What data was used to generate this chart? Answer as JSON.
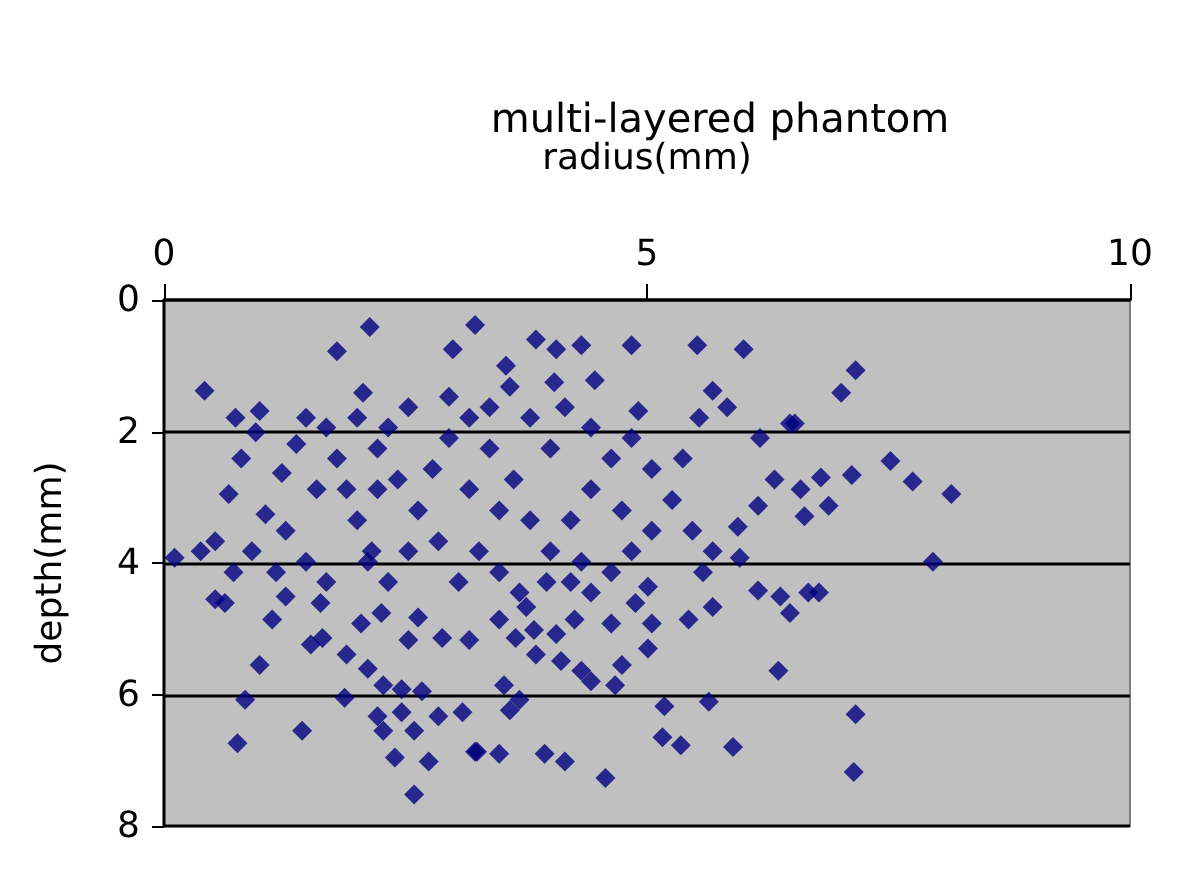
{
  "chart_data": {
    "type": "scatter",
    "title": "multi-layered phantom",
    "xlabel": "radius(mm)",
    "ylabel": "depth(mm)",
    "xlim": [
      0,
      10
    ],
    "xticks": [
      0,
      5,
      10
    ],
    "ylim": [
      8,
      0
    ],
    "yticks": [
      0,
      2,
      4,
      6,
      8
    ],
    "grid": "y",
    "marker": "diamond",
    "series": [
      {
        "color": "#000080",
        "x": [
          2.13,
          0.42,
          1.79,
          2.99,
          3.22,
          2.06,
          0.99,
          3.85,
          4.06,
          4.32,
          4.84,
          5.52,
          6.0,
          3.54,
          4.04,
          4.46,
          5.68,
          5.83,
          4.91,
          6.48,
          6.17,
          5.54,
          7.16,
          7.01,
          6.53,
          7.52,
          7.75,
          8.15,
          7.12,
          6.8,
          6.59,
          6.88,
          6.63,
          7.96,
          6.78,
          7.16,
          7.14,
          5.58,
          6.67,
          6.15,
          6.38,
          6.48,
          5.68,
          5.43,
          5.96,
          6.36,
          5.64,
          5.18,
          5.16,
          5.35,
          5.89,
          4.57,
          4.15,
          3.94,
          3.47,
          3.24,
          3.52,
          3.68,
          3.58,
          4.67,
          4.42,
          4.32,
          4.74,
          4.11,
          5.01,
          5.05,
          3.85,
          3.83,
          4.06,
          4.25,
          3.75,
          3.47,
          3.64,
          4.63,
          4.88,
          5.01,
          4.21,
          3.96,
          0.63,
          0.53,
          1.12,
          0.99,
          0.84,
          0.76,
          1.43,
          1.87,
          1.89,
          1.52,
          1.64,
          1.26,
          1.62,
          2.04,
          2.11,
          2.27,
          2.46,
          2.67,
          2.21,
          2.46,
          2.27,
          2.59,
          2.84,
          3.09,
          3.22,
          2.39,
          2.74,
          2.59,
          2.53,
          2.88,
          2.63,
          2.25,
          3.16,
          0.74,
          0.95,
          0.8,
          0.67,
          0.53,
          0.38,
          0.72,
          0.91,
          1.05,
          1.22,
          1.37,
          1.47,
          1.68,
          1.79,
          1.89,
          2.0,
          2.15,
          2.32,
          2.53,
          2.63,
          2.78,
          2.95,
          3.16,
          3.37,
          3.62,
          3.79,
          4.0,
          4.21,
          4.42,
          4.63,
          4.84,
          5.05,
          5.26,
          5.47,
          5.68,
          5.94,
          6.15,
          6.32,
          5.37,
          4.74,
          4.32,
          3.47,
          3.26,
          3.05,
          2.84,
          2.42,
          2.21,
          2.0,
          1.58,
          1.26,
          1.16,
          1.47,
          3.79,
          4.0,
          4.15,
          4.42,
          3.58,
          3.37,
          2.95,
          2.53,
          2.32,
          2.21,
          3.16,
          3.47,
          3.68,
          4.63,
          4.84,
          5.05,
          4.42,
          0.11,
          2.11,
          1.68
        ],
        "values": [
          0.41,
          1.38,
          0.78,
          0.75,
          0.38,
          1.41,
          1.69,
          0.6,
          0.75,
          0.69,
          0.69,
          0.69,
          0.75,
          1.0,
          1.25,
          1.22,
          1.38,
          1.63,
          1.69,
          1.88,
          2.1,
          1.79,
          1.07,
          1.41,
          1.88,
          2.45,
          2.76,
          2.95,
          2.66,
          2.7,
          2.88,
          3.13,
          3.29,
          3.98,
          4.45,
          6.3,
          7.18,
          4.14,
          4.45,
          4.42,
          4.51,
          4.76,
          4.67,
          4.86,
          3.92,
          5.64,
          6.11,
          6.18,
          6.65,
          6.77,
          6.8,
          7.27,
          7.02,
          6.9,
          6.9,
          6.87,
          5.86,
          6.08,
          6.24,
          5.86,
          5.8,
          5.64,
          5.55,
          5.49,
          5.3,
          4.92,
          5.39,
          5.02,
          5.08,
          4.86,
          4.67,
          4.86,
          5.14,
          4.92,
          4.61,
          4.36,
          4.29,
          4.29,
          4.61,
          4.55,
          4.86,
          5.55,
          6.08,
          6.74,
          6.55,
          6.05,
          5.39,
          5.24,
          5.14,
          4.51,
          4.61,
          4.92,
          5.61,
          5.86,
          5.92,
          5.95,
          6.33,
          6.27,
          6.55,
          6.55,
          6.33,
          6.27,
          6.87,
          6.96,
          7.02,
          7.52,
          5.17,
          5.14,
          4.83,
          4.76,
          5.17,
          1.79,
          2.01,
          2.41,
          2.95,
          3.67,
          3.82,
          4.14,
          3.82,
          3.26,
          2.63,
          2.19,
          1.79,
          1.94,
          2.41,
          2.88,
          3.35,
          3.82,
          4.29,
          3.82,
          3.2,
          2.57,
          2.1,
          1.79,
          2.26,
          2.73,
          3.35,
          3.82,
          3.35,
          2.88,
          2.41,
          2.1,
          2.57,
          3.04,
          3.51,
          3.82,
          3.45,
          3.13,
          2.73,
          2.41,
          3.2,
          3.98,
          3.2,
          3.82,
          4.29,
          3.67,
          2.73,
          2.26,
          1.79,
          2.88,
          3.51,
          4.14,
          3.98,
          1.79,
          2.26,
          1.63,
          1.94,
          1.32,
          1.63,
          1.47,
          1.63,
          1.94,
          2.88,
          2.88,
          4.14,
          4.45,
          4.14,
          3.82,
          3.51,
          4.45,
          3.92,
          3.98,
          4.29
        ]
      }
    ]
  }
}
